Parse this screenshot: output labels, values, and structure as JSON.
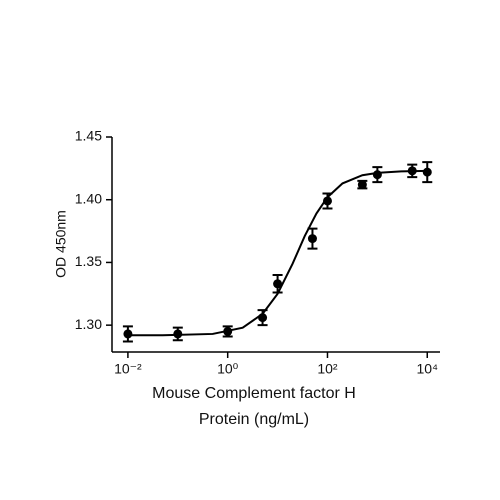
{
  "chart_data": {
    "type": "scatter",
    "ylabel": "OD 450nm",
    "xlabel": [
      "Mouse Complement factor H",
      "Protein (ng/mL)"
    ],
    "xscale": "log",
    "xlim": [
      0.0048,
      18000
    ],
    "xticks": [
      {
        "value": 0.01,
        "label": "10⁻²"
      },
      {
        "value": 1,
        "label": "10⁰"
      },
      {
        "value": 100,
        "label": "10²"
      },
      {
        "value": 10000,
        "label": "10⁴"
      }
    ],
    "ylim": [
      1.2786,
      1.45
    ],
    "yticks": [
      {
        "value": 1.3,
        "label": "1.30"
      },
      {
        "value": 1.35,
        "label": "1.35"
      },
      {
        "value": 1.4,
        "label": "1.40"
      },
      {
        "value": 1.45,
        "label": "1.45"
      }
    ],
    "series": [
      {
        "color": "#000000",
        "x": [
          0.01,
          0.1,
          1,
          5,
          10,
          50,
          100,
          500,
          1000,
          5000,
          10000
        ],
        "values": [
          1.293,
          1.293,
          1.295,
          1.306,
          1.333,
          1.369,
          1.399,
          1.412,
          1.42,
          1.423,
          1.422
        ],
        "errors": [
          0.006,
          0.005,
          0.004,
          0.006,
          0.007,
          0.008,
          0.006,
          0.003,
          0.006,
          0.005,
          0.008
        ]
      }
    ],
    "curve": {
      "color": "#000000",
      "x": [
        0.01,
        0.05,
        0.5,
        2,
        5,
        10,
        20,
        35,
        60,
        100,
        200,
        500,
        1000,
        3000,
        10000
      ],
      "values": [
        1.292,
        1.292,
        1.293,
        1.298,
        1.309,
        1.325,
        1.349,
        1.371,
        1.389,
        1.402,
        1.413,
        1.4195,
        1.4214,
        1.4226,
        1.423
      ]
    }
  }
}
